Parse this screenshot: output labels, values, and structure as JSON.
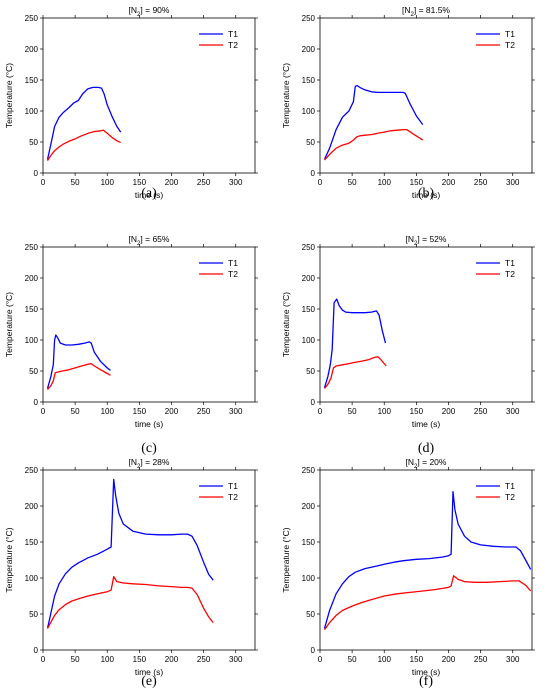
{
  "chart_data": [
    {
      "type": "line",
      "panel": "(a)",
      "title_pre": "[N",
      "title_sub": "2",
      "title_post": "] = 90%",
      "xlabel": "time (s)",
      "ylabel": "Temperature (°C)",
      "xlim": [
        0,
        330
      ],
      "ylim": [
        0,
        250
      ],
      "xticks": [
        0,
        50,
        100,
        150,
        200,
        250,
        300
      ],
      "yticks": [
        0,
        50,
        100,
        150,
        200,
        250
      ],
      "legend": "top-right",
      "series": [
        {
          "name": "T1",
          "color": "#0000ff",
          "x": [
            7,
            12,
            18,
            25,
            32,
            40,
            48,
            55,
            62,
            70,
            78,
            86,
            91,
            95,
            100,
            108,
            115,
            121
          ],
          "y": [
            22,
            45,
            75,
            90,
            98,
            105,
            113,
            117,
            128,
            136,
            138,
            138,
            137,
            128,
            110,
            90,
            75,
            66
          ]
        },
        {
          "name": "T2",
          "color": "#ff0000",
          "x": [
            7,
            12,
            18,
            25,
            32,
            40,
            50,
            60,
            70,
            80,
            90,
            94,
            100,
            108,
            115,
            121
          ],
          "y": [
            20,
            28,
            36,
            42,
            47,
            51,
            55,
            60,
            64,
            67,
            68,
            69,
            64,
            57,
            52,
            49
          ]
        }
      ]
    },
    {
      "type": "line",
      "panel": "(b)",
      "title_pre": "[N",
      "title_sub": "2",
      "title_post": "] = 81.5%",
      "xlabel": "time (s)",
      "ylabel": "Temperature (°C)",
      "xlim": [
        0,
        330
      ],
      "ylim": [
        0,
        250
      ],
      "xticks": [
        0,
        50,
        100,
        150,
        200,
        250,
        300
      ],
      "yticks": [
        0,
        50,
        100,
        150,
        200,
        250
      ],
      "legend": "top-right",
      "series": [
        {
          "name": "T1",
          "color": "#0000ff",
          "x": [
            7,
            15,
            25,
            35,
            45,
            52,
            55,
            58,
            62,
            70,
            80,
            90,
            100,
            110,
            120,
            130,
            133,
            140,
            150,
            160
          ],
          "y": [
            22,
            40,
            70,
            90,
            100,
            115,
            140,
            141,
            138,
            134,
            131,
            130,
            130,
            130,
            130,
            130,
            128,
            112,
            92,
            78
          ]
        },
        {
          "name": "T2",
          "color": "#ff0000",
          "x": [
            7,
            15,
            25,
            35,
            45,
            52,
            57,
            62,
            70,
            80,
            90,
            100,
            110,
            120,
            130,
            135,
            145,
            160
          ],
          "y": [
            21,
            30,
            40,
            45,
            48,
            53,
            58,
            60,
            61,
            62,
            64,
            66,
            68,
            69,
            70,
            70,
            63,
            53
          ]
        }
      ]
    },
    {
      "type": "line",
      "panel": "(c)",
      "title_pre": "[N",
      "title_sub": "2",
      "title_post": "] = 65%",
      "xlabel": "time (s)",
      "ylabel": "Temperature (°C)",
      "xlim": [
        0,
        330
      ],
      "ylim": [
        0,
        250
      ],
      "xticks": [
        0,
        50,
        100,
        150,
        200,
        250,
        300
      ],
      "yticks": [
        0,
        50,
        100,
        150,
        200,
        250
      ],
      "legend": "top-right",
      "series": [
        {
          "name": "T1",
          "color": "#0000ff",
          "x": [
            7,
            12,
            16,
            18,
            20,
            23,
            27,
            35,
            45,
            55,
            65,
            72,
            75,
            80,
            90,
            100,
            105
          ],
          "y": [
            22,
            40,
            60,
            100,
            108,
            103,
            95,
            92,
            92,
            93,
            95,
            97,
            95,
            80,
            65,
            55,
            51
          ]
        },
        {
          "name": "T2",
          "color": "#ff0000",
          "x": [
            7,
            12,
            16,
            19,
            22,
            30,
            40,
            50,
            60,
            70,
            75,
            80,
            90,
            100,
            105
          ],
          "y": [
            20,
            26,
            34,
            47,
            48,
            50,
            52,
            55,
            58,
            61,
            62,
            58,
            52,
            46,
            43
          ]
        }
      ]
    },
    {
      "type": "line",
      "panel": "(d)",
      "title_pre": "[N",
      "title_sub": "2",
      "title_post": "] = 52%",
      "xlabel": "time (s)",
      "ylabel": "Temperature (°C)",
      "xlim": [
        0,
        330
      ],
      "ylim": [
        0,
        250
      ],
      "xticks": [
        0,
        50,
        100,
        150,
        200,
        250,
        300
      ],
      "yticks": [
        0,
        50,
        100,
        150,
        200,
        250
      ],
      "legend": "top-right",
      "series": [
        {
          "name": "T1",
          "color": "#0000ff",
          "x": [
            7,
            12,
            16,
            19,
            22,
            26,
            30,
            35,
            40,
            50,
            60,
            70,
            80,
            88,
            92,
            97,
            102
          ],
          "y": [
            23,
            40,
            60,
            85,
            160,
            166,
            155,
            148,
            145,
            144,
            144,
            144,
            145,
            147,
            140,
            115,
            95
          ]
        },
        {
          "name": "T2",
          "color": "#ff0000",
          "x": [
            7,
            12,
            17,
            21,
            25,
            35,
            45,
            55,
            65,
            75,
            85,
            90,
            95,
            103
          ],
          "y": [
            22,
            28,
            38,
            55,
            58,
            60,
            62,
            64,
            66,
            68,
            72,
            73,
            68,
            58
          ]
        }
      ]
    },
    {
      "type": "line",
      "panel": "(e)",
      "title_pre": "[N",
      "title_sub": "2",
      "title_post": "] = 28%",
      "xlabel": "time (s)",
      "ylabel": "Temperature (°C)",
      "xlim": [
        0,
        330
      ],
      "ylim": [
        0,
        250
      ],
      "xticks": [
        0,
        50,
        100,
        150,
        200,
        250,
        300
      ],
      "yticks": [
        0,
        50,
        100,
        150,
        200,
        250
      ],
      "legend": "top-right",
      "series": [
        {
          "name": "T1",
          "color": "#0000ff",
          "x": [
            7,
            12,
            18,
            25,
            35,
            45,
            55,
            70,
            85,
            100,
            106,
            110,
            113,
            118,
            125,
            140,
            160,
            180,
            200,
            215,
            225,
            232,
            240,
            250,
            258,
            265
          ],
          "y": [
            30,
            50,
            75,
            92,
            106,
            115,
            121,
            128,
            133,
            140,
            143,
            237,
            215,
            190,
            175,
            165,
            161,
            160,
            160,
            161,
            161,
            158,
            145,
            122,
            105,
            97
          ]
        },
        {
          "name": "T2",
          "color": "#ff0000",
          "x": [
            7,
            12,
            18,
            25,
            35,
            45,
            55,
            70,
            85,
            100,
            106,
            110,
            115,
            125,
            140,
            160,
            180,
            200,
            215,
            225,
            232,
            240,
            250,
            258,
            265
          ],
          "y": [
            30,
            38,
            48,
            56,
            63,
            68,
            71,
            75,
            78,
            81,
            83,
            102,
            95,
            93,
            92,
            91,
            89,
            88,
            87,
            87,
            86,
            77,
            58,
            46,
            38
          ]
        }
      ]
    },
    {
      "type": "line",
      "panel": "(f)",
      "title_pre": "[N",
      "title_sub": "2",
      "title_post": "] = 20%",
      "xlabel": "time (s)",
      "ylabel": "Temperature (°C)",
      "xlim": [
        0,
        330
      ],
      "ylim": [
        0,
        250
      ],
      "xticks": [
        0,
        50,
        100,
        150,
        200,
        250,
        300
      ],
      "yticks": [
        0,
        50,
        100,
        150,
        200,
        250
      ],
      "legend": "top-right",
      "series": [
        {
          "name": "T1",
          "color": "#0000ff",
          "x": [
            7,
            15,
            25,
            35,
            45,
            55,
            70,
            85,
            100,
            115,
            130,
            150,
            170,
            190,
            200,
            204,
            207,
            210,
            215,
            225,
            235,
            250,
            270,
            290,
            305,
            312,
            320,
            328
          ],
          "y": [
            30,
            55,
            78,
            92,
            102,
            108,
            113,
            116,
            119,
            122,
            124,
            126,
            127,
            129,
            131,
            133,
            220,
            195,
            175,
            158,
            150,
            146,
            144,
            143,
            143,
            138,
            125,
            112
          ]
        },
        {
          "name": "T2",
          "color": "#ff0000",
          "x": [
            7,
            15,
            25,
            35,
            50,
            65,
            80,
            100,
            120,
            140,
            160,
            180,
            200,
            204,
            208,
            215,
            225,
            240,
            260,
            280,
            300,
            310,
            320,
            328
          ],
          "y": [
            28,
            38,
            48,
            55,
            61,
            66,
            70,
            75,
            78,
            80,
            82,
            84,
            87,
            89,
            103,
            98,
            95,
            94,
            94,
            95,
            96,
            96,
            90,
            82
          ]
        }
      ]
    }
  ],
  "captions": [
    "(a)",
    "(b)",
    "(c)",
    "(d)",
    "(e)",
    "(f)"
  ]
}
